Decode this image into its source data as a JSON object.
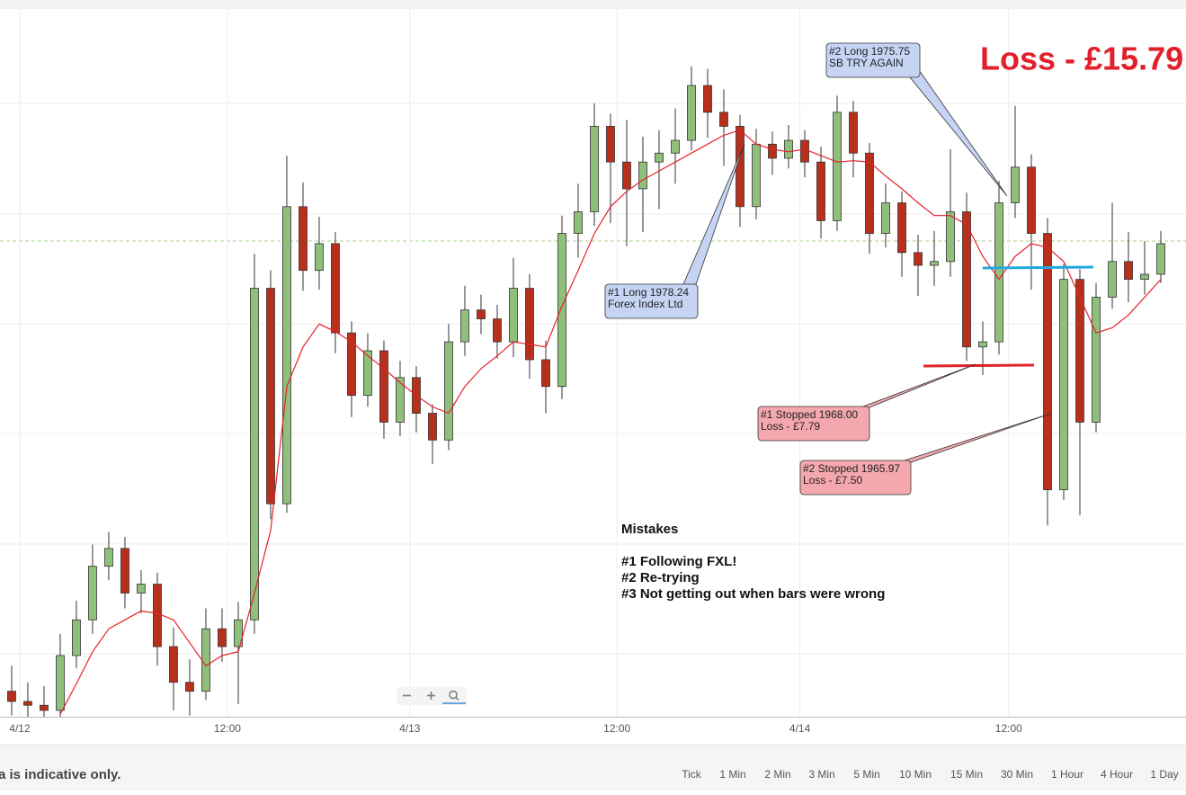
{
  "chart_data": {
    "type": "candlestick",
    "headline": "Loss - £15.79",
    "up_color": "#8fbf7a",
    "down_color": "#b8301c",
    "xlim": [
      -0.72,
      72.5
    ],
    "ylim": [
      1940.5,
      1996
    ],
    "xticks": [
      {
        "value": 0.5,
        "label": "4/12"
      },
      {
        "value": 13.33,
        "label": "12:00"
      },
      {
        "value": 24.6,
        "label": "4/13"
      },
      {
        "value": 37.4,
        "label": "12:00"
      },
      {
        "value": 48.7,
        "label": "4/14"
      },
      {
        "value": 61.6,
        "label": "12:00"
      }
    ],
    "open": [
      1942.5,
      1941.7,
      1941.4,
      1941.0,
      1945.3,
      1948.1,
      1952.3,
      1953.7,
      1950.2,
      1950.9,
      1946.0,
      1943.2,
      1942.5,
      1947.4,
      1946.0,
      1948.1,
      1974.1,
      1957.2,
      1980.5,
      1975.5,
      1977.6,
      1970.6,
      1965.7,
      1969.2,
      1963.6,
      1967.1,
      1964.3,
      1962.2,
      1969.9,
      1972.4,
      1971.7,
      1969.9,
      1974.1,
      1968.5,
      1966.4,
      1978.4,
      1980.1,
      1986.8,
      1984.0,
      1981.9,
      1984.0,
      1984.7,
      1985.7,
      1990.0,
      1987.9,
      1986.8,
      1980.5,
      1985.4,
      1984.3,
      1985.7,
      1984.0,
      1979.4,
      1987.9,
      1984.7,
      1978.4,
      1980.8,
      1976.9,
      1975.9,
      1976.2,
      1980.1,
      1969.5,
      1969.9,
      1980.8,
      1983.6,
      1978.4,
      1958.3,
      1974.8,
      1963.6,
      1973.4,
      1976.2,
      1974.8,
      1975.2
    ],
    "high": [
      1944.5,
      1943.2,
      1942.9,
      1947.0,
      1949.6,
      1954.0,
      1955.0,
      1954.6,
      1952.0,
      1951.8,
      1947.5,
      1945.0,
      1949.0,
      1949.0,
      1949.5,
      1976.8,
      1975.5,
      1984.5,
      1982.4,
      1979.7,
      1978.5,
      1971.5,
      1970.6,
      1970.0,
      1968.4,
      1968.0,
      1965.0,
      1971.3,
      1974.3,
      1973.6,
      1972.8,
      1976.5,
      1975.2,
      1970.0,
      1979.8,
      1982.3,
      1988.6,
      1987.8,
      1987.3,
      1986.0,
      1986.5,
      1988.2,
      1991.5,
      1991.3,
      1989.7,
      1987.7,
      1986.6,
      1986.4,
      1986.9,
      1986.5,
      1985.2,
      1989.2,
      1988.8,
      1985.5,
      1982.3,
      1981.7,
      1978.3,
      1978.6,
      1985.0,
      1981.6,
      1971.5,
      1982.5,
      1988.4,
      1984.6,
      1979.6,
      1976.0,
      1975.6,
      1974.5,
      1980.8,
      1978.5,
      1977.8,
      1978.6
    ],
    "low": [
      1940.6,
      1940.5,
      1940.5,
      1940.5,
      1944.3,
      1947.0,
      1951.2,
      1949.0,
      1948.6,
      1944.5,
      1941.0,
      1940.6,
      1941.8,
      1944.8,
      1941.5,
      1947.0,
      1956.0,
      1956.5,
      1973.9,
      1974.0,
      1969.0,
      1964.0,
      1964.8,
      1962.3,
      1962.5,
      1962.8,
      1960.3,
      1961.4,
      1968.8,
      1970.5,
      1968.6,
      1968.7,
      1967.0,
      1964.3,
      1965.4,
      1976.5,
      1979.0,
      1979.2,
      1977.4,
      1978.5,
      1980.3,
      1982.3,
      1984.9,
      1985.9,
      1983.7,
      1978.9,
      1979.5,
      1983.0,
      1983.5,
      1982.8,
      1978.0,
      1978.6,
      1982.8,
      1976.8,
      1977.3,
      1975.0,
      1973.5,
      1974.3,
      1975.0,
      1968.4,
      1967.3,
      1968.9,
      1979.6,
      1974.0,
      1955.5,
      1957.5,
      1956.3,
      1962.8,
      1972.5,
      1973.0,
      1973.6,
      1974.5
    ],
    "close": [
      1941.7,
      1941.4,
      1941.0,
      1945.3,
      1948.1,
      1952.3,
      1953.7,
      1950.2,
      1950.9,
      1946.0,
      1943.2,
      1942.5,
      1947.4,
      1946.0,
      1948.1,
      1974.1,
      1957.2,
      1980.5,
      1975.5,
      1977.6,
      1970.6,
      1965.7,
      1969.2,
      1963.6,
      1967.1,
      1964.3,
      1962.2,
      1969.9,
      1972.4,
      1971.7,
      1969.9,
      1974.1,
      1968.5,
      1966.4,
      1978.4,
      1980.1,
      1986.8,
      1984.0,
      1981.9,
      1984.0,
      1984.7,
      1985.7,
      1990.0,
      1987.9,
      1986.8,
      1980.5,
      1985.4,
      1984.3,
      1985.7,
      1984.0,
      1979.4,
      1987.9,
      1984.7,
      1978.4,
      1980.8,
      1976.9,
      1975.9,
      1976.2,
      1980.1,
      1969.5,
      1969.9,
      1980.8,
      1983.6,
      1978.4,
      1958.3,
      1974.8,
      1963.6,
      1973.4,
      1976.2,
      1974.8,
      1975.2,
      1977.6
    ],
    "moving_average": {
      "color": "#e8202a",
      "values": [
        null,
        null,
        null,
        1940.7,
        1943.1,
        1945.6,
        1947.4,
        1948.1,
        1948.8,
        1948.6,
        1948.1,
        1946.3,
        1944.5,
        1945.3,
        1945.6,
        1950.2,
        1955.1,
        1966.4,
        1969.5,
        1971.3,
        1970.7,
        1969.9,
        1968.8,
        1967.8,
        1966.7,
        1965.7,
        1964.8,
        1964.3,
        1966.4,
        1967.8,
        1968.8,
        1969.9,
        1969.7,
        1969.5,
        1972.7,
        1975.5,
        1978.4,
        1980.5,
        1981.7,
        1982.6,
        1983.3,
        1984.0,
        1984.7,
        1985.4,
        1986.1,
        1986.5,
        1985.4,
        1985.0,
        1984.8,
        1985.0,
        1984.5,
        1984.0,
        1984.1,
        1984.0,
        1982.9,
        1981.9,
        1980.8,
        1979.8,
        1979.8,
        1979.1,
        1976.6,
        1974.8,
        1976.6,
        1977.6,
        1977.3,
        1976.2,
        1973.4,
        1970.6,
        1971.0,
        1972.0,
        1973.4,
        1974.8
      ]
    },
    "annotations": [
      {
        "lines": [
          "#1 Long 1978.24",
          "Forex Index Ltd"
        ],
        "color": "#c6d4f4"
      },
      {
        "lines": [
          "#2 Long 1975.75",
          "SB TRY AGAIN"
        ],
        "color": "#c6d4f4"
      },
      {
        "lines": [
          "#1 Stopped 1968.00",
          "Loss - £7.79"
        ],
        "color": "#f4a8ae"
      },
      {
        "lines": [
          "#2 Stopped 1965.97",
          "Loss - £7.50"
        ],
        "color": "#f4a8ae"
      }
    ],
    "notes": {
      "title": "Mistakes",
      "items": [
        "#1  Following FXL!",
        "#2  Re-trying",
        "#3  Not getting out when bars were wrong"
      ]
    }
  },
  "footer": {
    "disclaimer": "a is indicative only.",
    "timeframes": [
      "Tick",
      "1 Min",
      "2 Min",
      "3 Min",
      "5 Min",
      "10 Min",
      "15 Min",
      "30 Min",
      "1 Hour",
      "4 Hour",
      "1 Day"
    ]
  }
}
